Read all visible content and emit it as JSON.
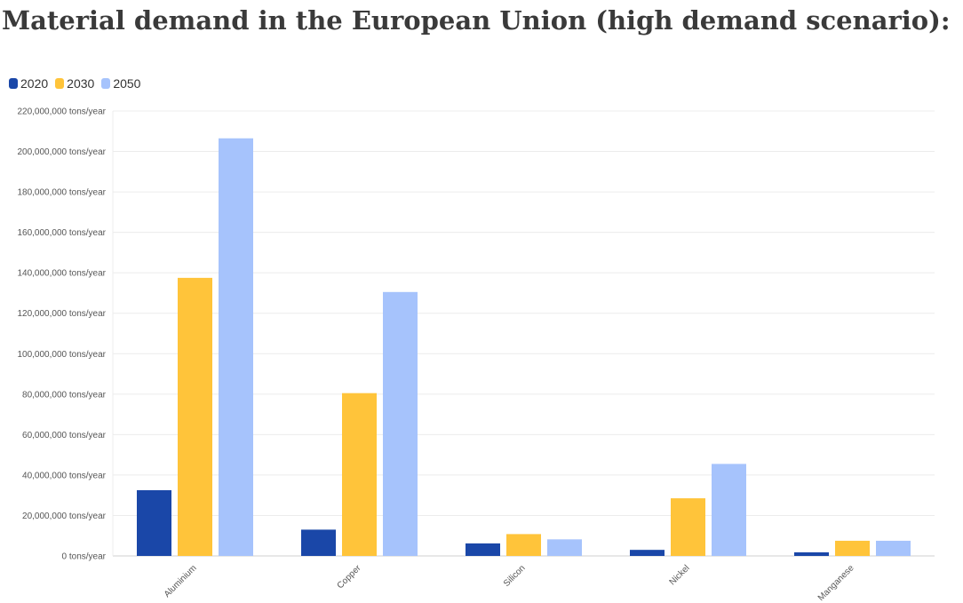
{
  "title": "Material demand in the European Union (high demand scenario):",
  "chart_data": {
    "type": "bar",
    "categories": [
      "Aluminium",
      "Copper",
      "Silicon",
      "Nickel",
      "Manganese"
    ],
    "series": [
      {
        "name": "2020",
        "color": "#1a47a8",
        "values": [
          32500000,
          13000000,
          6200000,
          3000000,
          1800000
        ]
      },
      {
        "name": "2030",
        "color": "#ffc43a",
        "values": [
          137500000,
          80500000,
          10800000,
          28500000,
          7500000
        ]
      },
      {
        "name": "2050",
        "color": "#a6c3fc",
        "values": [
          206500000,
          130500000,
          8200000,
          45500000,
          7500000
        ]
      }
    ],
    "ylim": [
      0,
      220000000
    ],
    "yticks": [
      0,
      20000000,
      40000000,
      60000000,
      80000000,
      100000000,
      120000000,
      140000000,
      160000000,
      180000000,
      200000000,
      220000000
    ],
    "ytick_labels": [
      "0 tons/year",
      "20,000,000 tons/year",
      "40,000,000 tons/year",
      "60,000,000 tons/year",
      "80,000,000 tons/year",
      "100,000,000 tons/year",
      "120,000,000 tons/year",
      "140,000,000 tons/year",
      "160,000,000 tons/year",
      "180,000,000 tons/year",
      "200,000,000 tons/year",
      "220,000,000 tons/year"
    ],
    "grid": true,
    "legend": "top-left"
  }
}
